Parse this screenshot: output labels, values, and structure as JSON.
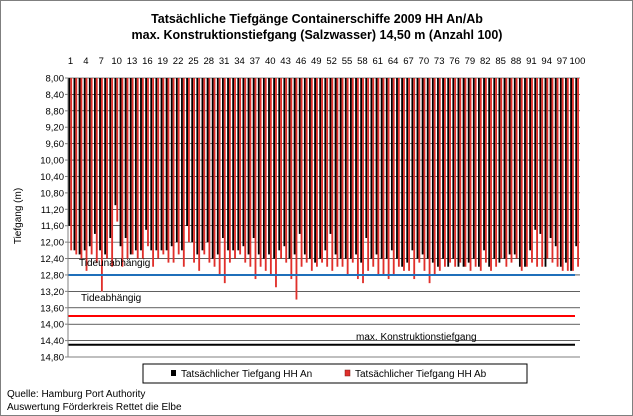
{
  "chart_data": {
    "type": "bar",
    "title": "Tatsächliche Tiefgänge Containerschiffe  2009 HH An/Ab",
    "subtitle": "max. Konstruktionstiefgang  (Salzwasser)  14,50 m (Anzahl 100)",
    "ylabel": "Tiefgang (m)",
    "ylim": [
      8.0,
      14.8
    ],
    "y_inverted": true,
    "y_ticks": [
      "8,00",
      "8,40",
      "8,80",
      "9,20",
      "9,60",
      "10,00",
      "10,40",
      "10,80",
      "11,20",
      "11,60",
      "12,00",
      "12,40",
      "12,80",
      "13,20",
      "13,60",
      "14,00",
      "14,40",
      "14,80"
    ],
    "x_tick_labels": [
      "1",
      "4",
      "7",
      "10",
      "13",
      "16",
      "19",
      "22",
      "25",
      "28",
      "31",
      "34",
      "37",
      "40",
      "43",
      "46",
      "49",
      "52",
      "55",
      "58",
      "61",
      "64",
      "67",
      "70",
      "73",
      "76",
      "79",
      "82",
      "85",
      "88",
      "91",
      "94",
      "97",
      "100"
    ],
    "x_axis_position": "top",
    "grid": true,
    "legend_position": "bottom",
    "series": [
      {
        "name": "Tatsächlicher Tiefgang HH An",
        "color": "#000000",
        "values": [
          11.6,
          12.2,
          12.3,
          12.2,
          12.1,
          11.8,
          12.2,
          12.3,
          11.9,
          11.1,
          12.1,
          11.9,
          12.3,
          12.2,
          12.2,
          11.7,
          12.2,
          12.2,
          12.2,
          12.2,
          12.1,
          12.0,
          12.2,
          11.6,
          12.0,
          12.3,
          12.2,
          12.0,
          12.4,
          12.3,
          11.9,
          12.2,
          12.2,
          12.2,
          12.1,
          12.3,
          11.9,
          12.3,
          12.4,
          12.3,
          12.4,
          12.2,
          12.1,
          12.4,
          12.3,
          11.8,
          12.3,
          12.4,
          12.5,
          12.4,
          12.2,
          11.8,
          12.3,
          12.4,
          12.4,
          12.4,
          12.3,
          12.5,
          11.9,
          12.4,
          12.3,
          12.4,
          12.4,
          12.2,
          12.4,
          12.6,
          12.5,
          12.2,
          12.4,
          12.3,
          12.4,
          12.5,
          12.6,
          12.4,
          12.6,
          12.4,
          12.6,
          12.6,
          12.5,
          12.4,
          12.6,
          12.2,
          12.6,
          12.4,
          12.5,
          12.4,
          12.3,
          12.3,
          12.6,
          12.6,
          12.2,
          11.7,
          11.8,
          12.6,
          11.9,
          12.1,
          12.6,
          12.5,
          12.7,
          12.1
        ]
      },
      {
        "name": "Tatsächlicher Tiefgang HH Ab",
        "color": "#e0302b",
        "values": [
          12.2,
          12.3,
          12.4,
          12.7,
          12.3,
          12.5,
          13.2,
          12.4,
          12.6,
          11.5,
          12.6,
          12.4,
          12.3,
          12.4,
          12.4,
          12.1,
          12.6,
          12.4,
          12.3,
          12.5,
          12.5,
          12.3,
          12.6,
          12.0,
          12.5,
          12.7,
          12.3,
          12.5,
          12.6,
          12.8,
          13.0,
          12.5,
          12.4,
          12.3,
          12.5,
          12.6,
          12.9,
          12.6,
          12.7,
          12.8,
          13.1,
          12.4,
          12.5,
          12.9,
          13.4,
          12.6,
          12.5,
          12.7,
          12.6,
          12.5,
          12.6,
          12.7,
          12.6,
          12.6,
          12.8,
          12.5,
          12.9,
          13.0,
          12.7,
          12.6,
          12.8,
          12.8,
          12.9,
          12.8,
          12.6,
          12.7,
          12.7,
          12.9,
          12.5,
          12.7,
          13.0,
          12.8,
          12.7,
          12.6,
          12.5,
          12.6,
          12.5,
          12.6,
          12.7,
          12.6,
          12.7,
          12.5,
          12.7,
          12.6,
          12.4,
          12.6,
          12.5,
          12.4,
          12.7,
          12.6,
          12.5,
          12.6,
          12.6,
          12.4,
          12.5,
          12.6,
          12.7,
          12.7,
          12.7,
          12.6
        ]
      }
    ],
    "reference_lines": [
      {
        "label": "Tideunabhängig",
        "y": 12.8,
        "color": "#1f6fba"
      },
      {
        "label": "Tideabhängig",
        "y": 13.8,
        "color": "#ff0000"
      },
      {
        "label": "max. Konstruktionstiefgang",
        "y": 14.5,
        "color": "#000000"
      }
    ]
  },
  "source": {
    "line1": "Quelle: Hamburg Port Authority",
    "line2": "Auswertung Förderkreis Rettet die Elbe"
  }
}
